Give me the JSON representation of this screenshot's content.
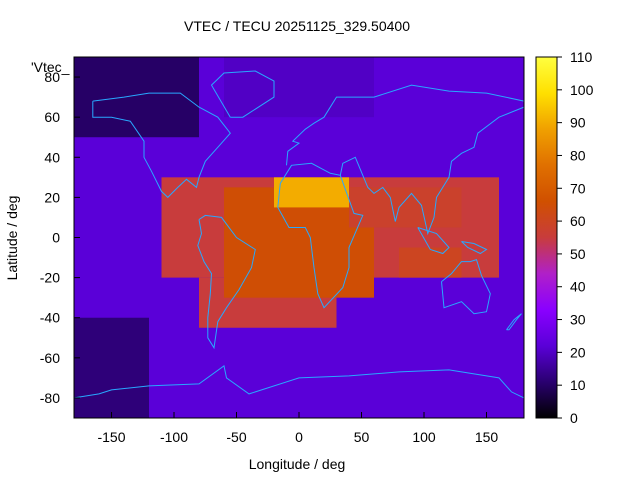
{
  "chart_data": {
    "type": "heatmap",
    "title": "VTEC / TECU 20251125_329.50400",
    "xlabel": "Longitude / deg",
    "ylabel": "Latitude / deg",
    "xlim": [
      -180,
      180
    ],
    "ylim": [
      -90,
      90
    ],
    "x_ticks": [
      "-150",
      "-100",
      "-50",
      "0",
      "50",
      "100",
      "150"
    ],
    "y_ticks": [
      "80",
      "60",
      "40",
      "20",
      "0",
      "-20",
      "-40",
      "-60",
      "-80"
    ],
    "colorbar": {
      "ticks": [
        "0",
        "10",
        "20",
        "30",
        "40",
        "50",
        "60",
        "70",
        "80",
        "90",
        "100",
        "110"
      ],
      "range": [
        0,
        110
      ],
      "palette": [
        "#000000",
        "#2a0070",
        "#5a00d8",
        "#8a00ff",
        "#b020c8",
        "#c83c3c",
        "#d05000",
        "#e07000",
        "#f0a000",
        "#ffe000",
        "#ffff40"
      ]
    },
    "series_label": "'Vtec_",
    "grid": false,
    "legend": "top-left",
    "regions_vtec": [
      {
        "lon_min": -180,
        "lon_max": 180,
        "lat_min": -90,
        "lat_max": 90,
        "value": 22
      },
      {
        "lon_min": -180,
        "lon_max": -80,
        "lat_min": 50,
        "lat_max": 90,
        "value": 10
      },
      {
        "lon_min": -60,
        "lon_max": 60,
        "lat_min": 60,
        "lat_max": 90,
        "value": 20
      },
      {
        "lon_min": -180,
        "lon_max": -120,
        "lat_min": -90,
        "lat_max": -40,
        "value": 12
      },
      {
        "lon_min": -110,
        "lon_max": 160,
        "lat_min": -20,
        "lat_max": 30,
        "value": 55
      },
      {
        "lon_min": -80,
        "lon_max": 30,
        "lat_min": -45,
        "lat_max": -20,
        "value": 55
      },
      {
        "lon_min": -60,
        "lon_max": 60,
        "lat_min": -30,
        "lat_max": 25,
        "value": 65
      },
      {
        "lon_min": -20,
        "lon_max": 40,
        "lat_min": 15,
        "lat_max": 30,
        "value": 90
      },
      {
        "lon_min": 80,
        "lon_max": 130,
        "lat_min": -20,
        "lat_max": -5,
        "value": 60
      },
      {
        "lon_min": 40,
        "lon_max": 130,
        "lat_min": 5,
        "lat_max": 25,
        "value": 58
      }
    ]
  }
}
